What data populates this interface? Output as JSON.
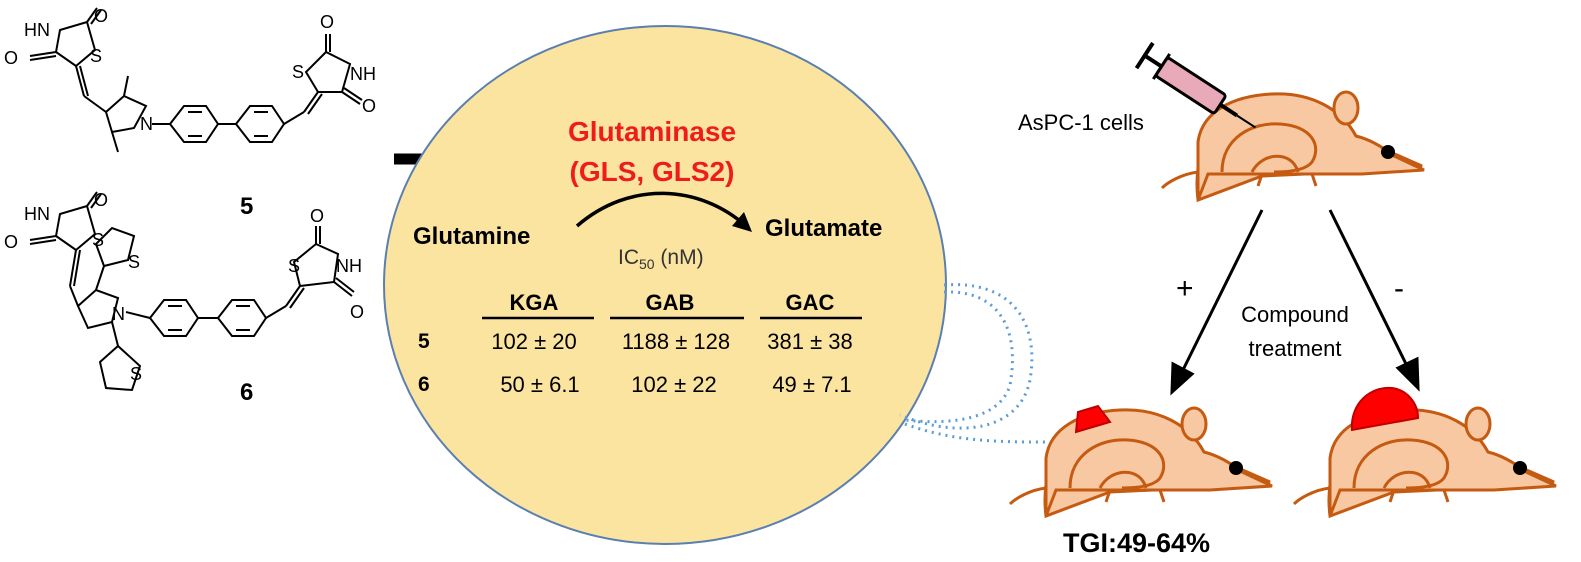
{
  "compounds": [
    {
      "id": "5",
      "label": "5",
      "atoms": {
        "hn_left": "HN",
        "o_left_top": "O",
        "o_left_bottom": "O",
        "s_left": "S",
        "n_pyrrole": "N",
        "s_right": "S",
        "nh_right": "NH",
        "o_right_top": "O",
        "o_right_bottom": "O"
      }
    },
    {
      "id": "6",
      "label": "6",
      "atoms": {
        "hn_left": "HN",
        "o_left_top": "O",
        "o_left_bottom": "O",
        "s_left": "S",
        "n_pyrrole": "N",
        "s_right": "S",
        "nh_right": "NH",
        "o_right_top": "O",
        "o_right_bottom": "O",
        "s_thiophene_top": "S",
        "s_thiophene_bottom": "S"
      }
    }
  ],
  "enzyme": {
    "name_line1": "Glutaminase",
    "name_line2": "(GLS, GLS2)",
    "substrate": "Glutamine",
    "product": "Glutamate",
    "ic50_prefix": "IC",
    "ic50_sub": "50",
    "ic50_suffix": " (nM)",
    "colors": {
      "enzyme_text": "#ee1c1c",
      "ellipse_fill": "#fbe3a0",
      "ellipse_stroke": "#5a7fb0"
    }
  },
  "ic50_table": {
    "headers": [
      "KGA",
      "GAB",
      "GAC"
    ],
    "rows": [
      {
        "compound": "5",
        "values": [
          "102 ± 20",
          "1188 ± 128",
          "381 ± 38"
        ]
      },
      {
        "compound": "6",
        "values": [
          "50 ± 6.1",
          "102 ± 22",
          "49 ± 7.1"
        ]
      }
    ]
  },
  "xenograft": {
    "cells_label": "AsPC-1 cells",
    "plus": "+",
    "minus": "-",
    "treatment_line1": "Compound",
    "treatment_line2": "treatment",
    "tgi": "TGI:49-64%",
    "colors": {
      "mouse_fill": "#f7c8a2",
      "mouse_stroke": "#c55a11",
      "tumor": "#ff0000",
      "syringe_barrel": "#e8aab8"
    }
  }
}
